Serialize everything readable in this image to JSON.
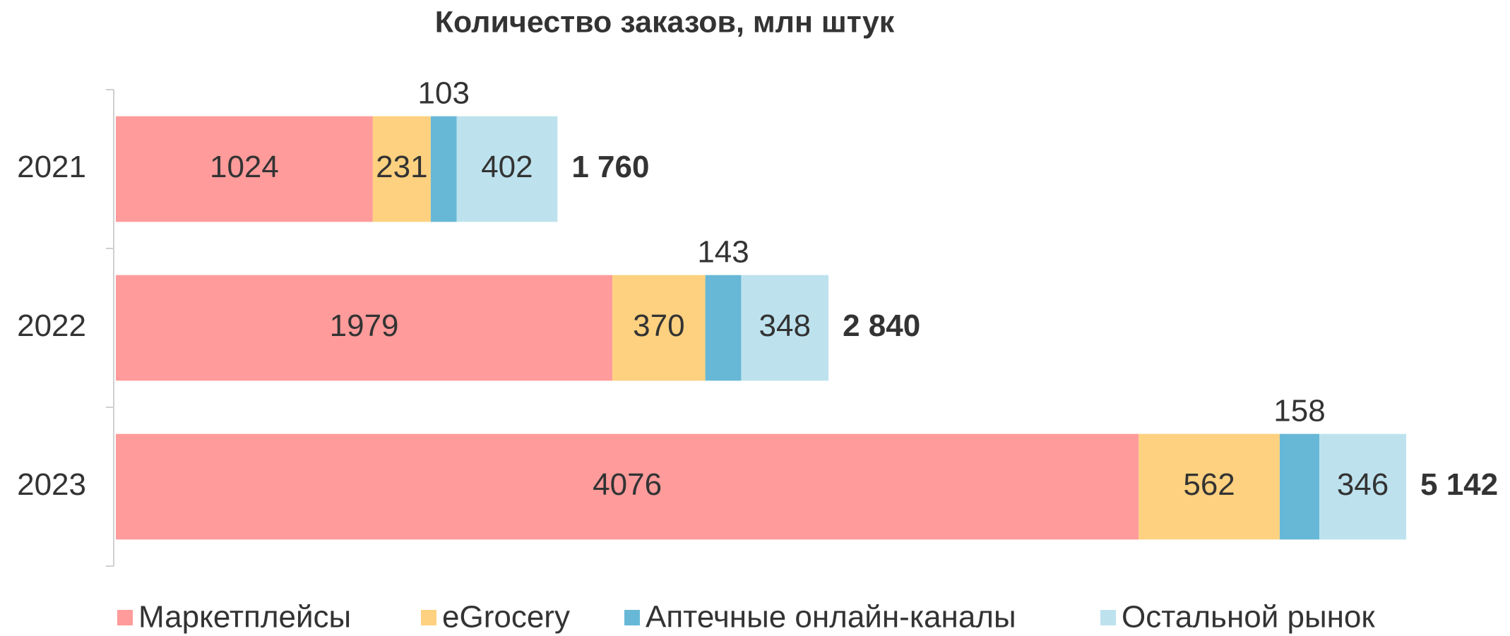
{
  "chart_data": {
    "type": "stacked-bar-horizontal",
    "title": "Количество заказов, млн штук",
    "categories": [
      "2021",
      "2022",
      "2023"
    ],
    "series": [
      {
        "name": "Маркетплейсы",
        "color": "#ff9b9b",
        "values": [
          1024,
          1979,
          4076
        ]
      },
      {
        "name": "eGrocery",
        "color": "#fdd17f",
        "values": [
          231,
          370,
          562
        ]
      },
      {
        "name": "Аптечные онлайн-каналы",
        "color": "#67b8d6",
        "values": [
          103,
          143,
          158
        ]
      },
      {
        "name": "Остальной рынок",
        "color": "#bde2ee",
        "values": [
          402,
          348,
          346
        ]
      }
    ],
    "totals": {
      "values": [
        1760,
        2840,
        5142
      ],
      "value_labels": [
        "1 760",
        "2 840",
        "5 142"
      ]
    },
    "legend": "bottom"
  }
}
